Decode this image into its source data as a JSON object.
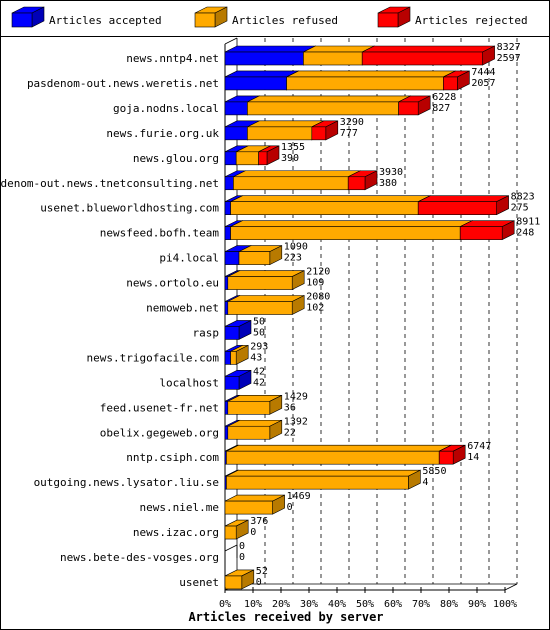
{
  "colors": {
    "accepted": "#0000ff",
    "refused": "#ffaa00",
    "rejected": "#ff0000"
  },
  "chart_data": {
    "type": "bar",
    "orientation": "horizontal",
    "stacked": true,
    "title": "",
    "xlabel": "Articles received by server",
    "ylabel": "",
    "xlim": [
      0,
      100
    ],
    "x_unit": "%",
    "x_ticks": [
      "0%",
      "10%",
      "20%",
      "30%",
      "40%",
      "50%",
      "60%",
      "70%",
      "80%",
      "90%",
      "100%"
    ],
    "grid": "vertical dashed",
    "legend_position": "top",
    "legend": [
      "Articles accepted",
      "Articles refused",
      "Articles rejected"
    ],
    "categories": [
      "news.nntp4.net",
      "pasdenom-out.news.weretis.net",
      "goja.nodns.local",
      "news.furie.org.uk",
      "news.glou.org",
      "pasdenom-out.news.tnetconsulting.net",
      "usenet.blueworldhosting.com",
      "newsfeed.bofh.team",
      "pi4.local",
      "news.ortolo.eu",
      "nemoweb.net",
      "rasp",
      "news.trigofacile.com",
      "localhost",
      "feed.usenet-fr.net",
      "obelix.gegeweb.org",
      "nntp.csiph.com",
      "outgoing.news.lysator.liu.se",
      "news.niel.me",
      "news.izac.org",
      "news.bete-des-vosges.org",
      "usenet"
    ],
    "annotations_offered": [
      "8327",
      "7444",
      "6228",
      "3290",
      "1355",
      "3930",
      "8823",
      "8911",
      "1090",
      "2120",
      "2080",
      "50",
      "293",
      "42",
      "1429",
      "1392",
      "6747",
      "5850",
      "1469",
      "376",
      "0",
      "52"
    ],
    "annotations_accepted": [
      "2597",
      "2057",
      "827",
      "777",
      "390",
      "380",
      "275",
      "248",
      "223",
      "109",
      "102",
      "50",
      "43",
      "42",
      "36",
      "22",
      "14",
      "4",
      "0",
      "0",
      "0",
      "0"
    ],
    "series": [
      {
        "name": "Articles accepted",
        "values": [
          28,
          22,
          8,
          8,
          4,
          3,
          2,
          2,
          5,
          1,
          1,
          5,
          2,
          5,
          1,
          1,
          0.5,
          0.5,
          0,
          0,
          0,
          0
        ]
      },
      {
        "name": "Articles refused",
        "values": [
          21,
          56,
          54,
          23,
          8,
          41,
          67,
          82,
          11,
          23,
          23,
          0,
          2,
          0,
          15,
          15,
          76,
          65,
          17,
          4,
          0,
          6
        ]
      },
      {
        "name": "Articles rejected",
        "values": [
          43,
          5,
          7,
          5,
          3,
          6,
          28,
          15,
          0,
          0,
          0,
          0,
          0,
          0,
          0,
          0,
          5,
          0,
          0,
          0,
          0,
          0
        ]
      }
    ]
  }
}
